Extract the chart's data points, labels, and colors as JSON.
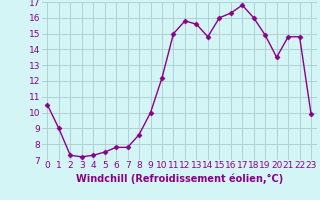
{
  "x": [
    0,
    1,
    2,
    3,
    4,
    5,
    6,
    7,
    8,
    9,
    10,
    11,
    12,
    13,
    14,
    15,
    16,
    17,
    18,
    19,
    20,
    21,
    22,
    23
  ],
  "y": [
    10.5,
    9.0,
    7.3,
    7.2,
    7.3,
    7.5,
    7.8,
    7.8,
    8.6,
    10.0,
    12.2,
    15.0,
    15.8,
    15.6,
    14.8,
    16.0,
    16.3,
    16.8,
    16.0,
    14.9,
    13.5,
    14.8,
    14.8,
    9.9
  ],
  "line_color": "#8B008B",
  "marker": "D",
  "marker_size": 2.5,
  "bg_color": "#d4f5f5",
  "grid_color": "#aacccc",
  "xlabel": "Windchill (Refroidissement éolien,°C)",
  "xlabel_fontsize": 7,
  "ylim": [
    7,
    17
  ],
  "xlim": [
    -0.5,
    23.5
  ],
  "yticks": [
    7,
    8,
    9,
    10,
    11,
    12,
    13,
    14,
    15,
    16,
    17
  ],
  "xticks": [
    0,
    1,
    2,
    3,
    4,
    5,
    6,
    7,
    8,
    9,
    10,
    11,
    12,
    13,
    14,
    15,
    16,
    17,
    18,
    19,
    20,
    21,
    22,
    23
  ],
  "tick_fontsize": 6.5,
  "linewidth": 1.0
}
